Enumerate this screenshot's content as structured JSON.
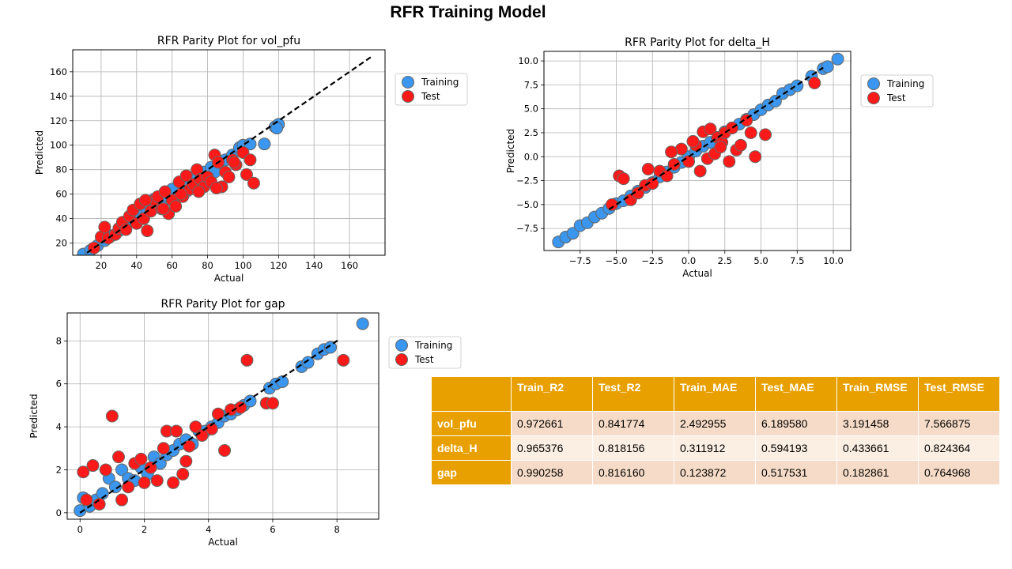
{
  "page": {
    "title": "RFR Training Model"
  },
  "colors": {
    "training": "#3A96EE",
    "test": "#FF1A1A",
    "marker_edge": "#666666",
    "identity_line": "#000000",
    "grid": "#b0b0b0",
    "table_header": "#E8A000",
    "table_row_odd": "#F6DCC8",
    "table_row_even": "#FBEEE3"
  },
  "chart_data": [
    {
      "id": "vol_pfu",
      "type": "scatter",
      "title": "RFR Parity Plot for vol_pfu",
      "xlabel": "Actual",
      "ylabel": "Predicted",
      "xlim": [
        4,
        180
      ],
      "ylim": [
        10,
        178
      ],
      "xticks": [
        20,
        40,
        60,
        80,
        100,
        120,
        140,
        160
      ],
      "yticks": [
        20,
        40,
        60,
        80,
        100,
        120,
        140,
        160
      ],
      "grid": true,
      "legend": "outside-right",
      "identity_line": [
        12,
        172
      ],
      "series": [
        {
          "name": "Training",
          "points": [
            [
              10,
              11
            ],
            [
              14,
              14
            ],
            [
              18,
              18
            ],
            [
              22,
              22
            ],
            [
              26,
              26
            ],
            [
              30,
              30
            ],
            [
              34,
              34
            ],
            [
              38,
              38
            ],
            [
              42,
              42
            ],
            [
              46,
              46
            ],
            [
              50,
              50
            ],
            [
              54,
              54
            ],
            [
              58,
              58
            ],
            [
              62,
              62
            ],
            [
              66,
              66
            ],
            [
              70,
              68
            ],
            [
              74,
              74
            ],
            [
              78,
              78
            ],
            [
              82,
              82
            ],
            [
              86,
              84
            ],
            [
              90,
              88
            ],
            [
              94,
              92
            ],
            [
              98,
              98
            ],
            [
              100,
              100
            ],
            [
              104,
              101
            ],
            [
              112,
              101
            ],
            [
              118,
              115
            ],
            [
              120,
              117
            ],
            [
              119,
              114
            ],
            [
              60,
              64
            ],
            [
              68,
              62
            ],
            [
              76,
              70
            ],
            [
              84,
              78
            ],
            [
              50,
              56
            ],
            [
              44,
              40
            ],
            [
              36,
              40
            ]
          ]
        },
        {
          "name": "Test",
          "points": [
            [
              16,
              16
            ],
            [
              20,
              25
            ],
            [
              22,
              33
            ],
            [
              24,
              24
            ],
            [
              28,
              27
            ],
            [
              30,
              32
            ],
            [
              32,
              37
            ],
            [
              34,
              31
            ],
            [
              36,
              42
            ],
            [
              38,
              47
            ],
            [
              40,
              36
            ],
            [
              42,
              52
            ],
            [
              44,
              40
            ],
            [
              46,
              30
            ],
            [
              48,
              46
            ],
            [
              50,
              55
            ],
            [
              52,
              58
            ],
            [
              54,
              48
            ],
            [
              56,
              62
            ],
            [
              58,
              44
            ],
            [
              60,
              55
            ],
            [
              62,
              50
            ],
            [
              64,
              70
            ],
            [
              66,
              58
            ],
            [
              68,
              75
            ],
            [
              70,
              64
            ],
            [
              72,
              68
            ],
            [
              74,
              80
            ],
            [
              76,
              72
            ],
            [
              78,
              66
            ],
            [
              80,
              74
            ],
            [
              82,
              70
            ],
            [
              84,
              92
            ],
            [
              86,
              86
            ],
            [
              88,
              66
            ],
            [
              90,
              78
            ],
            [
              92,
              74
            ],
            [
              94,
              88
            ],
            [
              96,
              84
            ],
            [
              100,
              94
            ],
            [
              102,
              76
            ],
            [
              104,
              88
            ],
            [
              106,
              69
            ],
            [
              45,
              55
            ],
            [
              55,
              48
            ],
            [
              65,
              60
            ],
            [
              75,
              62
            ],
            [
              85,
              65
            ],
            [
              95,
              86
            ]
          ]
        }
      ]
    },
    {
      "id": "delta_H",
      "type": "scatter",
      "title": "RFR Parity Plot for delta_H",
      "xlabel": "Actual",
      "ylabel": "Predicted",
      "xlim": [
        -10,
        11.2
      ],
      "ylim": [
        -9.8,
        11
      ],
      "xticks": [
        -7.5,
        -5.0,
        -2.5,
        0.0,
        2.5,
        5.0,
        7.5,
        10.0
      ],
      "yticks": [
        -7.5,
        -5.0,
        -2.5,
        0.0,
        2.5,
        5.0,
        7.5,
        10.0
      ],
      "grid": true,
      "legend": "outside-right",
      "identity_line": [
        -5.5,
        9.3
      ],
      "series": [
        {
          "name": "Training",
          "points": [
            [
              -9,
              -8.9
            ],
            [
              -8.5,
              -8.4
            ],
            [
              -8,
              -8
            ],
            [
              -7.5,
              -7.2
            ],
            [
              -7,
              -6.9
            ],
            [
              -6.5,
              -6.3
            ],
            [
              -6,
              -5.9
            ],
            [
              -5.5,
              -5.4
            ],
            [
              -5,
              -4.9
            ],
            [
              -4.5,
              -4.6
            ],
            [
              -4,
              -4.1
            ],
            [
              -3.5,
              -3.6
            ],
            [
              -3,
              -3.2
            ],
            [
              -2.5,
              -2.7
            ],
            [
              -2,
              -2.1
            ],
            [
              -1.5,
              -1.6
            ],
            [
              -1,
              -1.1
            ],
            [
              -0.5,
              -0.6
            ],
            [
              0,
              0
            ],
            [
              0.5,
              0.6
            ],
            [
              1,
              1.1
            ],
            [
              1.5,
              1.5
            ],
            [
              2,
              2
            ],
            [
              2.5,
              2.6
            ],
            [
              3,
              3
            ],
            [
              3.5,
              3.4
            ],
            [
              4,
              3.9
            ],
            [
              4.5,
              4.4
            ],
            [
              5,
              4.9
            ],
            [
              5.5,
              5.4
            ],
            [
              6,
              5.8
            ],
            [
              6.5,
              6.6
            ],
            [
              7,
              7
            ],
            [
              7.5,
              7.4
            ],
            [
              8.5,
              8.4
            ],
            [
              9.3,
              9.2
            ],
            [
              9.6,
              9.4
            ],
            [
              10.3,
              10.2
            ]
          ]
        },
        {
          "name": "Test",
          "points": [
            [
              -5.3,
              -5
            ],
            [
              -4.8,
              -2
            ],
            [
              -4.5,
              -2.3
            ],
            [
              -4,
              -4.5
            ],
            [
              -3.5,
              -3.8
            ],
            [
              -3,
              -3
            ],
            [
              -2.5,
              -2.8
            ],
            [
              -2,
              -1.5
            ],
            [
              -1.5,
              -2
            ],
            [
              -1,
              -0.8
            ],
            [
              -0.5,
              0.8
            ],
            [
              0,
              -0.5
            ],
            [
              0.5,
              1.2
            ],
            [
              0.8,
              -1.5
            ],
            [
              1,
              2.6
            ],
            [
              1.3,
              -0.2
            ],
            [
              1.5,
              2.9
            ],
            [
              1.8,
              0.3
            ],
            [
              2,
              2
            ],
            [
              2.3,
              1.5
            ],
            [
              2.5,
              2.5
            ],
            [
              2.8,
              -0.5
            ],
            [
              3,
              3
            ],
            [
              3.3,
              0.7
            ],
            [
              3.6,
              1.2
            ],
            [
              4,
              3.8
            ],
            [
              4.3,
              2.5
            ],
            [
              4.6,
              0
            ],
            [
              5.3,
              2.3
            ],
            [
              8.7,
              7.7
            ],
            [
              -1.2,
              0.5
            ],
            [
              -2.8,
              -1.3
            ],
            [
              0.3,
              1.6
            ],
            [
              2.2,
              1
            ]
          ]
        }
      ]
    },
    {
      "id": "gap",
      "type": "scatter",
      "title": "RFR Parity Plot for gap",
      "xlabel": "Actual",
      "ylabel": "Predicted",
      "xlim": [
        -0.4,
        9.3
      ],
      "ylim": [
        -0.3,
        9.3
      ],
      "xticks": [
        0,
        2,
        4,
        6,
        8
      ],
      "yticks": [
        0,
        2,
        4,
        6,
        8
      ],
      "grid": true,
      "legend": "outside-right",
      "identity_line": [
        0,
        8.1
      ],
      "series": [
        {
          "name": "Training",
          "points": [
            [
              0,
              0.1
            ],
            [
              0.1,
              0.7
            ],
            [
              0.3,
              0.3
            ],
            [
              0.5,
              0.6
            ],
            [
              0.7,
              0.9
            ],
            [
              0.9,
              1.6
            ],
            [
              1.1,
              1.2
            ],
            [
              1.3,
              2
            ],
            [
              1.5,
              1.6
            ],
            [
              1.7,
              1.5
            ],
            [
              1.9,
              2.1
            ],
            [
              2.1,
              1.8
            ],
            [
              2.3,
              2.6
            ],
            [
              2.5,
              2.3
            ],
            [
              2.7,
              2.7
            ],
            [
              2.9,
              2.9
            ],
            [
              3.1,
              3.2
            ],
            [
              3.3,
              3.4
            ],
            [
              3.5,
              3.2
            ],
            [
              3.7,
              3.8
            ],
            [
              3.9,
              3.8
            ],
            [
              4.1,
              4
            ],
            [
              4.3,
              4.2
            ],
            [
              4.5,
              4.5
            ],
            [
              4.7,
              4.6
            ],
            [
              4.9,
              4.8
            ],
            [
              5.1,
              5
            ],
            [
              5.3,
              5.2
            ],
            [
              5.9,
              5.8
            ],
            [
              6.1,
              6
            ],
            [
              6.3,
              6.1
            ],
            [
              6.9,
              6.8
            ],
            [
              7.1,
              7
            ],
            [
              7.4,
              7.4
            ],
            [
              7.6,
              7.6
            ],
            [
              7.8,
              7.7
            ],
            [
              8.8,
              8.8
            ]
          ]
        },
        {
          "name": "Test",
          "points": [
            [
              0.1,
              1.9
            ],
            [
              0.2,
              0.6
            ],
            [
              0.4,
              2.2
            ],
            [
              0.6,
              0.4
            ],
            [
              0.8,
              2
            ],
            [
              1,
              4.5
            ],
            [
              1.2,
              2.6
            ],
            [
              1.3,
              0.6
            ],
            [
              1.5,
              1.2
            ],
            [
              1.7,
              2.3
            ],
            [
              1.9,
              2.5
            ],
            [
              2,
              1.4
            ],
            [
              2.2,
              2.1
            ],
            [
              2.4,
              1.5
            ],
            [
              2.6,
              3
            ],
            [
              2.7,
              3.8
            ],
            [
              2.9,
              1.4
            ],
            [
              3,
              3.8
            ],
            [
              3.2,
              1.8
            ],
            [
              3.3,
              2.4
            ],
            [
              3.4,
              3.1
            ],
            [
              3.6,
              4
            ],
            [
              3.8,
              3.6
            ],
            [
              4.1,
              3.9
            ],
            [
              4.3,
              4.6
            ],
            [
              4.5,
              2.9
            ],
            [
              4.7,
              4.8
            ],
            [
              5,
              4.9
            ],
            [
              5.2,
              7.1
            ],
            [
              5.8,
              5.1
            ],
            [
              6,
              5.1
            ],
            [
              8.2,
              7.1
            ]
          ]
        }
      ]
    }
  ],
  "table": {
    "columns": [
      "Train_R2",
      "Test_R2",
      "Train_MAE",
      "Test_MAE",
      "Train_RMSE",
      "Test_RMSE"
    ],
    "rows": [
      {
        "label": "vol_pfu",
        "values": [
          "0.972661",
          "0.841774",
          "2.492955",
          "6.189580",
          "3.191458",
          "7.566875"
        ]
      },
      {
        "label": "delta_H",
        "values": [
          "0.965376",
          "0.818156",
          "0.311912",
          "0.594193",
          "0.433661",
          "0.824364"
        ]
      },
      {
        "label": "gap",
        "values": [
          "0.990258",
          "0.816160",
          "0.123872",
          "0.517531",
          "0.182861",
          "0.764968"
        ]
      }
    ]
  }
}
